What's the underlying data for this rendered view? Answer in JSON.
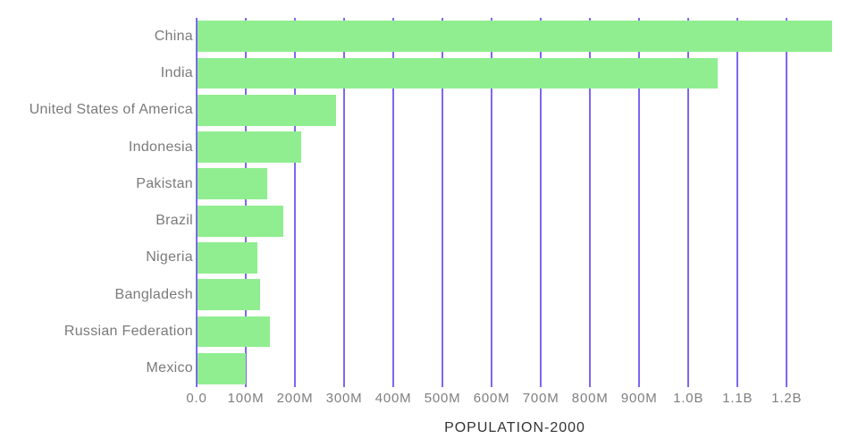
{
  "chart_data": {
    "type": "bar",
    "orientation": "horizontal",
    "title": "",
    "xlabel": "POPULATION-2000",
    "ylabel": "",
    "categories": [
      "China",
      "India",
      "United States of America",
      "Indonesia",
      "Pakistan",
      "Brazil",
      "Nigeria",
      "Bangladesh",
      "Russian Federation",
      "Mexico"
    ],
    "values_millions": [
      1290,
      1057,
      282,
      211,
      142,
      175,
      122,
      127,
      147,
      99
    ],
    "x_tick_labels": [
      "0.0",
      "100M",
      "200M",
      "300M",
      "400M",
      "500M",
      "600M",
      "700M",
      "800M",
      "900M",
      "1.0B",
      "1.1B",
      "1.2B"
    ],
    "x_tick_values_millions": [
      0,
      100,
      200,
      300,
      400,
      500,
      600,
      700,
      800,
      900,
      1000,
      1100,
      1200
    ],
    "xlim_millions": [
      0,
      1294
    ],
    "grid": "vertical",
    "legend_position": "none",
    "colors": {
      "bar": "#90EE90",
      "gridline": "#7B68EE",
      "category_label_text": "#7a7a7a",
      "tick_label_text": "#7f7f7f",
      "axis_title_text": "#333333",
      "background": "#ffffff"
    }
  }
}
